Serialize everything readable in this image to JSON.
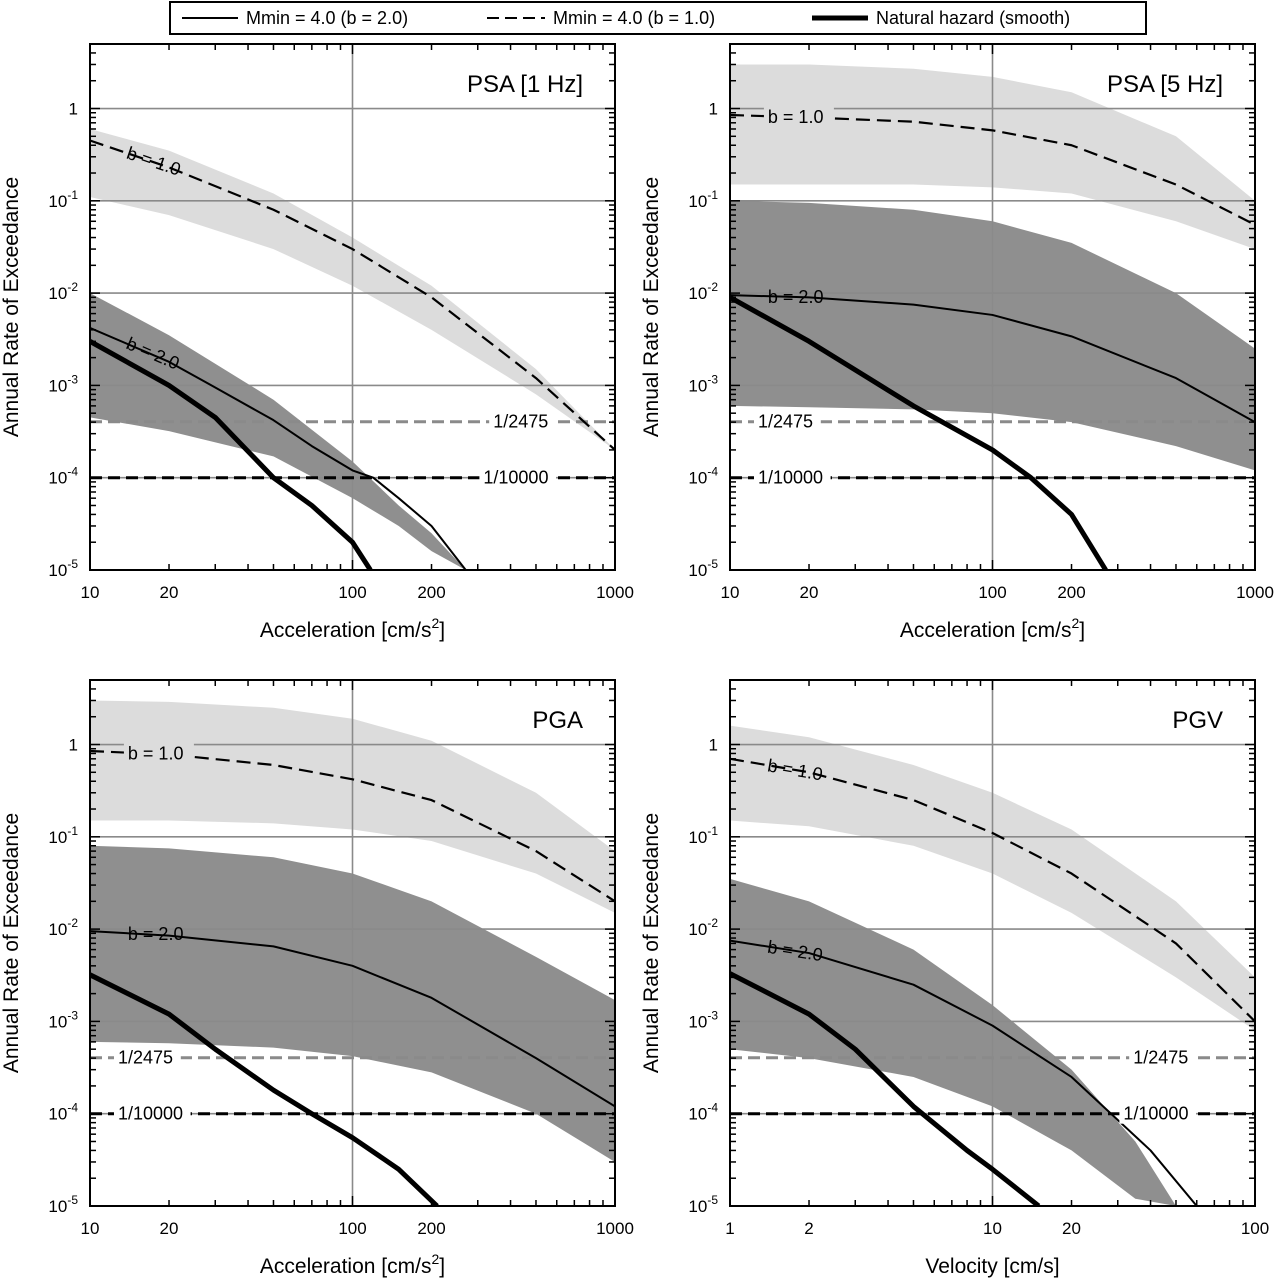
{
  "legend": {
    "entries": [
      {
        "label": "Mmin = 4.0 (b = 2.0)",
        "style": "solid"
      },
      {
        "label": "Mmin = 4.0 (b = 1.0)",
        "style": "dashed"
      },
      {
        "label": "Natural hazard (smooth)",
        "style": "thick"
      }
    ]
  },
  "colors": {
    "band_b1": "#dcdcdc",
    "band_b2": "#8f8f8f",
    "grid": "#8a8a8a",
    "rp_2475": "#8a8a8a",
    "rp_10000": "#000000"
  },
  "chart_data": [
    {
      "type": "line",
      "title": "PSA [1 Hz]",
      "xlabel": "Acceleration [cm/s²]",
      "ylabel": "Annual Rate of Exceedance",
      "xscale": "log",
      "yscale": "log",
      "xlim": [
        10,
        1000
      ],
      "ylim": [
        1e-05,
        5
      ],
      "xticks": [
        "10",
        "20",
        "100",
        "200",
        "1000"
      ],
      "yticks": [
        "10^-5",
        "10^-4",
        "10^-3",
        "10^-2",
        "10^-1",
        "1"
      ],
      "grid": true,
      "reference_lines": [
        {
          "label": "1/2475",
          "y": 0.000404
        },
        {
          "label": "1/10000",
          "y": 0.0001
        }
      ],
      "series": [
        {
          "name": "b = 1.0",
          "style": "dashed",
          "x": [
            10,
            20,
            50,
            100,
            200,
            500,
            1000
          ],
          "y": [
            0.45,
            0.23,
            0.08,
            0.03,
            0.009,
            0.0012,
            0.0002
          ]
        },
        {
          "name": "b = 2.0",
          "style": "solid",
          "x": [
            10,
            20,
            30,
            50,
            70,
            100,
            120,
            150,
            200,
            270
          ],
          "y": [
            0.0042,
            0.0018,
            0.00095,
            0.00042,
            0.00022,
            0.00012,
            0.0001,
            6e-05,
            3e-05,
            1e-05
          ]
        },
        {
          "name": "Natural hazard (smooth)",
          "style": "thick",
          "x": [
            10,
            20,
            30,
            50,
            70,
            100,
            117
          ],
          "y": [
            0.003,
            0.001,
            0.00045,
            0.0001,
            5e-05,
            2e-05,
            1e-05
          ]
        }
      ],
      "bands": [
        {
          "series": "b = 1.0",
          "x": [
            10,
            20,
            50,
            100,
            200,
            500,
            1000
          ],
          "upper": [
            0.6,
            0.35,
            0.12,
            0.04,
            0.012,
            0.0015,
            0.0002
          ],
          "lower": [
            0.11,
            0.07,
            0.03,
            0.012,
            0.004,
            0.0008,
            0.0002
          ]
        },
        {
          "series": "b = 2.0",
          "x": [
            10,
            20,
            50,
            100,
            150,
            200,
            270
          ],
          "upper": [
            0.01,
            0.0035,
            0.0007,
            0.00015,
            5e-05,
            2.5e-05,
            1e-05
          ],
          "lower": [
            0.00045,
            0.00032,
            0.00017,
            6e-05,
            3e-05,
            1.6e-05,
            1e-05
          ]
        }
      ]
    },
    {
      "type": "line",
      "title": "PSA [5 Hz]",
      "xlabel": "Acceleration [cm/s²]",
      "ylabel": "Annual Rate of Exceedance",
      "xscale": "log",
      "yscale": "log",
      "xlim": [
        10,
        1000
      ],
      "ylim": [
        1e-05,
        5
      ],
      "xticks": [
        "10",
        "20",
        "100",
        "200",
        "1000"
      ],
      "yticks": [
        "10^-5",
        "10^-4",
        "10^-3",
        "10^-2",
        "10^-1",
        "1"
      ],
      "grid": true,
      "reference_lines": [
        {
          "label": "1/2475",
          "y": 0.000404
        },
        {
          "label": "1/10000",
          "y": 0.0001
        }
      ],
      "series": [
        {
          "name": "b = 1.0",
          "style": "dashed",
          "x": [
            10,
            20,
            50,
            100,
            200,
            500,
            1000
          ],
          "y": [
            0.85,
            0.8,
            0.72,
            0.58,
            0.4,
            0.15,
            0.055
          ]
        },
        {
          "name": "b = 2.0",
          "style": "solid",
          "x": [
            10,
            20,
            50,
            100,
            200,
            500,
            1000
          ],
          "y": [
            0.0095,
            0.009,
            0.0075,
            0.0058,
            0.0034,
            0.0012,
            0.0004
          ]
        },
        {
          "name": "Natural hazard (smooth)",
          "style": "thick",
          "x": [
            10,
            20,
            50,
            100,
            140,
            200,
            270
          ],
          "y": [
            0.009,
            0.003,
            0.0006,
            0.0002,
            0.0001,
            4e-05,
            1e-05
          ]
        }
      ],
      "bands": [
        {
          "series": "b = 1.0",
          "x": [
            10,
            20,
            50,
            100,
            200,
            500,
            1000
          ],
          "upper": [
            3,
            3,
            2.7,
            2.2,
            1.5,
            0.5,
            0.1
          ],
          "lower": [
            0.15,
            0.15,
            0.15,
            0.14,
            0.12,
            0.06,
            0.03
          ]
        },
        {
          "series": "b = 2.0",
          "x": [
            10,
            20,
            50,
            100,
            200,
            500,
            1000
          ],
          "upper": [
            0.1,
            0.095,
            0.08,
            0.06,
            0.035,
            0.01,
            0.0025
          ],
          "lower": [
            0.0006,
            0.00058,
            0.00055,
            0.0005,
            0.0004,
            0.00022,
            0.00012
          ]
        }
      ]
    },
    {
      "type": "line",
      "title": "PGA",
      "xlabel": "Acceleration [cm/s²]",
      "ylabel": "Annual Rate of Exceedance",
      "xscale": "log",
      "yscale": "log",
      "xlim": [
        10,
        1000
      ],
      "ylim": [
        1e-05,
        5
      ],
      "xticks": [
        "10",
        "20",
        "100",
        "200",
        "1000"
      ],
      "yticks": [
        "10^-5",
        "10^-4",
        "10^-3",
        "10^-2",
        "10^-1",
        "1"
      ],
      "grid": true,
      "reference_lines": [
        {
          "label": "1/2475",
          "y": 0.000404
        },
        {
          "label": "1/10000",
          "y": 0.0001
        }
      ],
      "series": [
        {
          "name": "b = 1.0",
          "style": "dashed",
          "x": [
            10,
            20,
            50,
            100,
            200,
            500,
            1000
          ],
          "y": [
            0.85,
            0.78,
            0.6,
            0.42,
            0.25,
            0.07,
            0.02
          ]
        },
        {
          "name": "b = 2.0",
          "style": "solid",
          "x": [
            10,
            20,
            50,
            100,
            200,
            500,
            1000
          ],
          "y": [
            0.0095,
            0.0085,
            0.0065,
            0.004,
            0.0018,
            0.0004,
            0.00012
          ]
        },
        {
          "name": "Natural hazard (smooth)",
          "style": "thick",
          "x": [
            10,
            20,
            30,
            50,
            70,
            100,
            150,
            210
          ],
          "y": [
            0.0032,
            0.0012,
            0.0005,
            0.00018,
            0.0001,
            5.5e-05,
            2.5e-05,
            1e-05
          ]
        }
      ],
      "bands": [
        {
          "series": "b = 1.0",
          "x": [
            10,
            20,
            50,
            100,
            200,
            500,
            1000
          ],
          "upper": [
            3,
            2.9,
            2.5,
            1.9,
            1.1,
            0.3,
            0.07
          ],
          "lower": [
            0.15,
            0.15,
            0.14,
            0.12,
            0.09,
            0.04,
            0.015
          ]
        },
        {
          "series": "b = 2.0",
          "x": [
            10,
            20,
            50,
            100,
            200,
            500,
            1000
          ],
          "upper": [
            0.08,
            0.075,
            0.06,
            0.04,
            0.02,
            0.005,
            0.0017
          ],
          "lower": [
            0.0006,
            0.00058,
            0.00052,
            0.00042,
            0.00028,
            0.0001,
            3e-05
          ]
        }
      ]
    },
    {
      "type": "line",
      "title": "PGV",
      "xlabel": "Velocity [cm/s]",
      "ylabel": "Annual Rate of Exceedance",
      "xscale": "log",
      "yscale": "log",
      "xlim": [
        1,
        100
      ],
      "ylim": [
        1e-05,
        5
      ],
      "xticks": [
        "1",
        "2",
        "10",
        "20",
        "100"
      ],
      "yticks": [
        "10^-5",
        "10^-4",
        "10^-3",
        "10^-2",
        "10^-1",
        "1"
      ],
      "grid": true,
      "reference_lines": [
        {
          "label": "1/2475",
          "y": 0.000404
        },
        {
          "label": "1/10000",
          "y": 0.0001
        }
      ],
      "series": [
        {
          "name": "b = 1.0",
          "style": "dashed",
          "x": [
            1,
            2,
            5,
            10,
            20,
            50,
            100
          ],
          "y": [
            0.7,
            0.5,
            0.25,
            0.11,
            0.04,
            0.007,
            0.001
          ]
        },
        {
          "name": "b = 2.0",
          "style": "solid",
          "x": [
            1,
            2,
            5,
            10,
            20,
            40,
            60
          ],
          "y": [
            0.0075,
            0.0055,
            0.0025,
            0.0009,
            0.00025,
            4e-05,
            1e-05
          ]
        },
        {
          "name": "Natural hazard (smooth)",
          "style": "thick",
          "x": [
            1,
            2,
            3,
            5,
            8,
            10,
            15
          ],
          "y": [
            0.0033,
            0.0012,
            0.0005,
            0.00012,
            4e-05,
            2.5e-05,
            1e-05
          ]
        }
      ],
      "bands": [
        {
          "series": "b = 1.0",
          "x": [
            1,
            2,
            5,
            10,
            20,
            50,
            100
          ],
          "upper": [
            1.6,
            1.2,
            0.6,
            0.3,
            0.12,
            0.02,
            0.003
          ],
          "lower": [
            0.15,
            0.13,
            0.08,
            0.04,
            0.015,
            0.003,
            0.0008
          ]
        },
        {
          "series": "b = 2.0",
          "x": [
            1,
            2,
            5,
            10,
            20,
            35,
            50
          ],
          "upper": [
            0.035,
            0.02,
            0.006,
            0.0015,
            0.0003,
            5e-05,
            1e-05
          ],
          "lower": [
            0.0005,
            0.0004,
            0.00025,
            0.00012,
            4e-05,
            1.2e-05,
            1e-05
          ]
        }
      ]
    }
  ]
}
